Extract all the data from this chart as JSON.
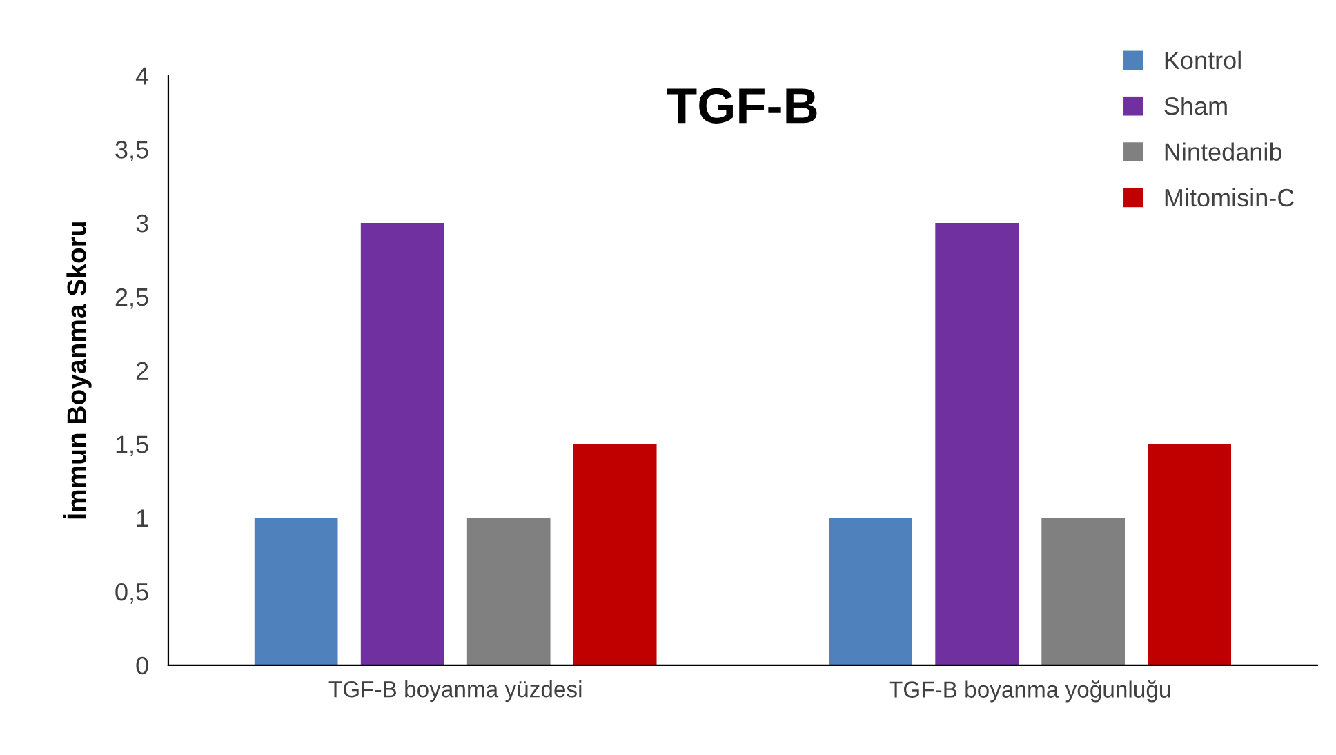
{
  "chart_data": {
    "type": "bar",
    "title": "TGF-B",
    "ylabel": "İmmun Boyanma Skoru",
    "categories": [
      "TGF-B boyanma yüzdesi",
      "TGF-B boyanma yoğunluğu"
    ],
    "series": [
      {
        "name": "Kontrol",
        "color": "#4f81bd",
        "values": [
          1,
          1
        ]
      },
      {
        "name": "Sham",
        "color": "#7030a0",
        "values": [
          3,
          3
        ]
      },
      {
        "name": "Nintedanib",
        "color": "#808080",
        "values": [
          1,
          1
        ]
      },
      {
        "name": "Mitomisin-C",
        "color": "#c00000",
        "values": [
          1.5,
          1.5
        ]
      }
    ],
    "ylim": [
      0,
      4
    ],
    "yticks": [
      0,
      {
        "value": 0.5,
        "label": "0,5"
      },
      1,
      {
        "value": 1.5,
        "label": "1,5"
      },
      2,
      {
        "value": 2.5,
        "label": "2,5"
      },
      3,
      {
        "value": 3.5,
        "label": "3,5"
      },
      4
    ],
    "grid": false,
    "legend": "top right"
  }
}
